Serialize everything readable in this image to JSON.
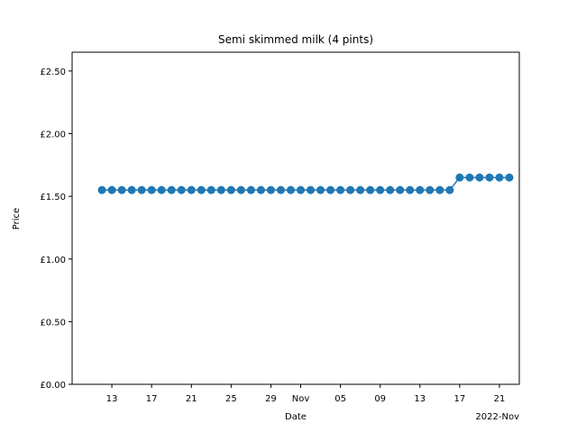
{
  "chart_data": {
    "type": "line",
    "title": "Semi skimmed milk (4 pints)",
    "xlabel": "Date",
    "ylabel": "Price",
    "x_offset_label": "2022-Nov",
    "x_tick_labels": [
      "13",
      "17",
      "21",
      "25",
      "29",
      "Nov",
      "05",
      "09",
      "13",
      "17",
      "21"
    ],
    "x_tick_dates": [
      "2022-10-13",
      "2022-10-17",
      "2022-10-21",
      "2022-10-25",
      "2022-10-29",
      "2022-11-01",
      "2022-11-05",
      "2022-11-09",
      "2022-11-13",
      "2022-11-17",
      "2022-11-21"
    ],
    "y_tick_labels": [
      "£0.00",
      "£0.50",
      "£1.00",
      "£1.50",
      "£2.00",
      "£2.50"
    ],
    "y_tick_values": [
      0,
      0.5,
      1.0,
      1.5,
      2.0,
      2.5
    ],
    "ylim": [
      0,
      2.65
    ],
    "xlim": [
      "2022-10-09",
      "2022-11-23"
    ],
    "marker_color": "#1f77b4",
    "line_color": "#1f77b4",
    "grid": false,
    "series": [
      {
        "x_start": "2022-10-12",
        "values": [
          1.55,
          1.55,
          1.55,
          1.55,
          1.55,
          1.55,
          1.55,
          1.55,
          1.55,
          1.55,
          1.55,
          1.55,
          1.55,
          1.55,
          1.55,
          1.55,
          1.55,
          1.55,
          1.55,
          1.55,
          1.55,
          1.55,
          1.55,
          1.55,
          1.55,
          1.55,
          1.55,
          1.55,
          1.55,
          1.55,
          1.55,
          1.55,
          1.55,
          1.55,
          1.55,
          1.55,
          1.65,
          1.65,
          1.65,
          1.65,
          1.65,
          1.65
        ]
      }
    ]
  }
}
